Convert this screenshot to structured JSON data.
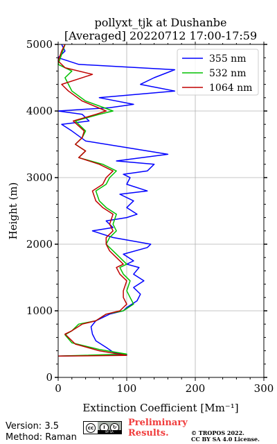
{
  "chart_data": {
    "type": "line",
    "title": "pollyxt_tjk at Dushanbe",
    "subtitle": "[Averaged] 20220712 17:00-17:59",
    "xlabel": "Extinction Coefficient [Mm⁻¹]",
    "ylabel": "Height (m)",
    "xlim": [
      0,
      300
    ],
    "ylim": [
      0,
      5000
    ],
    "xticks": [
      "0",
      "100",
      "200",
      "300"
    ],
    "yticks": [
      "0",
      "1000",
      "2000",
      "3000",
      "4000",
      "5000"
    ],
    "grid": true,
    "legend_position": "top-right",
    "series": [
      {
        "name": "355 nm",
        "color": "#0000ff",
        "points": [
          [
            0,
            320
          ],
          [
            100,
            340
          ],
          [
            80,
            380
          ],
          [
            70,
            450
          ],
          [
            55,
            550
          ],
          [
            50,
            650
          ],
          [
            48,
            760
          ],
          [
            55,
            850
          ],
          [
            75,
            950
          ],
          [
            95,
            1000
          ],
          [
            100,
            1050
          ],
          [
            115,
            1150
          ],
          [
            120,
            1250
          ],
          [
            110,
            1350
          ],
          [
            125,
            1450
          ],
          [
            110,
            1550
          ],
          [
            118,
            1650
          ],
          [
            100,
            1700
          ],
          [
            110,
            1750
          ],
          [
            95,
            1850
          ],
          [
            130,
            1950
          ],
          [
            135,
            2000
          ],
          [
            80,
            2100
          ],
          [
            50,
            2200
          ],
          [
            80,
            2250
          ],
          [
            70,
            2350
          ],
          [
            100,
            2400
          ],
          [
            115,
            2450
          ],
          [
            100,
            2550
          ],
          [
            110,
            2650
          ],
          [
            90,
            2750
          ],
          [
            130,
            2800
          ],
          [
            100,
            2900
          ],
          [
            105,
            3000
          ],
          [
            95,
            3050
          ],
          [
            130,
            3100
          ],
          [
            140,
            3200
          ],
          [
            85,
            3250
          ],
          [
            160,
            3350
          ],
          [
            100,
            3450
          ],
          [
            40,
            3550
          ],
          [
            20,
            3700
          ],
          [
            5,
            3800
          ],
          [
            45,
            3850
          ],
          [
            35,
            3950
          ],
          [
            0,
            4000
          ],
          [
            75,
            4050
          ],
          [
            110,
            4100
          ],
          [
            60,
            4200
          ],
          [
            170,
            4300
          ],
          [
            120,
            4400
          ],
          [
            140,
            4500
          ],
          [
            170,
            4620
          ],
          [
            30,
            4700
          ],
          [
            0,
            4800
          ],
          [
            10,
            4900
          ],
          [
            5,
            5000
          ]
        ]
      },
      {
        "name": "532 nm",
        "color": "#00c000",
        "points": [
          [
            0,
            320
          ],
          [
            100,
            350
          ],
          [
            60,
            420
          ],
          [
            20,
            520
          ],
          [
            10,
            640
          ],
          [
            20,
            700
          ],
          [
            30,
            800
          ],
          [
            55,
            850
          ],
          [
            70,
            950
          ],
          [
            95,
            1000
          ],
          [
            110,
            1100
          ],
          [
            105,
            1200
          ],
          [
            100,
            1300
          ],
          [
            105,
            1450
          ],
          [
            95,
            1550
          ],
          [
            90,
            1650
          ],
          [
            100,
            1700
          ],
          [
            90,
            1800
          ],
          [
            80,
            1900
          ],
          [
            70,
            2000
          ],
          [
            75,
            2100
          ],
          [
            85,
            2200
          ],
          [
            80,
            2300
          ],
          [
            85,
            2450
          ],
          [
            70,
            2550
          ],
          [
            60,
            2650
          ],
          [
            55,
            2800
          ],
          [
            70,
            2900
          ],
          [
            75,
            3000
          ],
          [
            85,
            3100
          ],
          [
            65,
            3200
          ],
          [
            30,
            3300
          ],
          [
            40,
            3400
          ],
          [
            25,
            3500
          ],
          [
            35,
            3600
          ],
          [
            40,
            3700
          ],
          [
            25,
            3850
          ],
          [
            60,
            3950
          ],
          [
            80,
            4000
          ],
          [
            40,
            4150
          ],
          [
            20,
            4300
          ],
          [
            10,
            4500
          ],
          [
            20,
            4600
          ],
          [
            0,
            4700
          ],
          [
            5,
            4850
          ],
          [
            10,
            5000
          ]
        ]
      },
      {
        "name": "1064 nm",
        "color": "#c00000",
        "points": [
          [
            0,
            320
          ],
          [
            100,
            330
          ],
          [
            60,
            400
          ],
          [
            25,
            500
          ],
          [
            10,
            650
          ],
          [
            20,
            700
          ],
          [
            35,
            800
          ],
          [
            55,
            850
          ],
          [
            70,
            950
          ],
          [
            90,
            1000
          ],
          [
            100,
            1100
          ],
          [
            95,
            1200
          ],
          [
            95,
            1300
          ],
          [
            100,
            1450
          ],
          [
            90,
            1550
          ],
          [
            85,
            1650
          ],
          [
            95,
            1700
          ],
          [
            85,
            1800
          ],
          [
            75,
            1900
          ],
          [
            70,
            2000
          ],
          [
            70,
            2100
          ],
          [
            80,
            2200
          ],
          [
            75,
            2300
          ],
          [
            80,
            2450
          ],
          [
            65,
            2550
          ],
          [
            55,
            2650
          ],
          [
            50,
            2800
          ],
          [
            65,
            2900
          ],
          [
            70,
            3000
          ],
          [
            80,
            3100
          ],
          [
            60,
            3200
          ],
          [
            30,
            3300
          ],
          [
            40,
            3400
          ],
          [
            25,
            3500
          ],
          [
            35,
            3600
          ],
          [
            38,
            3700
          ],
          [
            22,
            3850
          ],
          [
            55,
            3950
          ],
          [
            70,
            4000
          ],
          [
            35,
            4150
          ],
          [
            15,
            4300
          ],
          [
            5,
            4400
          ],
          [
            50,
            4550
          ],
          [
            10,
            4650
          ],
          [
            0,
            4750
          ],
          [
            5,
            4900
          ],
          [
            10,
            5000
          ]
        ]
      }
    ]
  },
  "footer": {
    "version": "Version: 3.5",
    "method": "Method: Raman",
    "preliminary_line1": "Preliminary",
    "preliminary_line2": "Results.",
    "copyright_line1": "© TROPOS 2022.",
    "copyright_line2": "CC BY SA 4.0 License.",
    "license_badge_text": "BY SA"
  }
}
